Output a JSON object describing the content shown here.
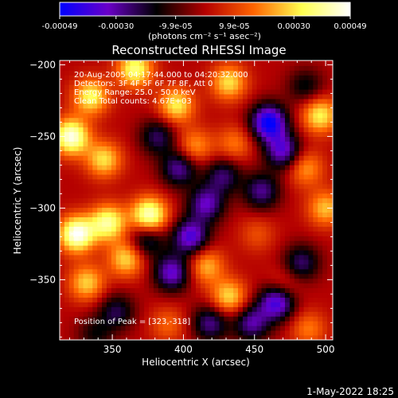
{
  "colorbar": {
    "tick_labels": [
      "-0.00049",
      "-0.00030",
      "-9.9e-05",
      "9.9e-05",
      "0.00030",
      "0.00049"
    ],
    "tick_values": [
      -0.00049,
      -0.0003,
      -9.9e-05,
      9.9e-05,
      0.0003,
      0.00049
    ],
    "range": [
      -0.00049,
      0.00049
    ],
    "units_label": "(photons cm⁻² s⁻¹ asec⁻²)",
    "gradient_colors": [
      "#0000ff",
      "#6a00c8",
      "#000000",
      "#b40000",
      "#ff6400",
      "#ffff50",
      "#ffffff"
    ]
  },
  "info": {
    "time_line": "20-Aug-2005 04:17:44.000 to 04:20:32.000",
    "detectors_line": "Detectors: 3F 4F 5F 6F 7F 8F, Att 0",
    "energy_line": "Energy Range: 25.0 - 50.0 keV",
    "clean_line": "Clean     Total counts: 4.67E+03",
    "peak_line": "Position of Peak = [323,-318]"
  },
  "footer": {
    "timestamp": "1-May-2022 18:25"
  },
  "chart_data": {
    "type": "heatmap",
    "title": "Reconstructed RHESSI Image",
    "xlabel": "Heliocentric X (arcsec)",
    "ylabel": "Heliocentric Y (arcsec)",
    "xlim": [
      313,
      505
    ],
    "ylim": [
      -392,
      -197
    ],
    "x_ticks": [
      350,
      400,
      450,
      500
    ],
    "y_ticks": [
      -200,
      -250,
      -300,
      -350
    ],
    "peak_position": [
      323,
      -318
    ],
    "colormap": "blue-purple-black-red-orange-yellow-white",
    "grid": false,
    "blobs": [
      {
        "x": 321,
        "y": -250,
        "value": 0.00047
      },
      {
        "x": 335,
        "y": -222,
        "value": 0.00034
      },
      {
        "x": 366,
        "y": -203,
        "value": 0.00037
      },
      {
        "x": 395,
        "y": -228,
        "value": 0.00032
      },
      {
        "x": 344,
        "y": -266,
        "value": 0.0003
      },
      {
        "x": 325,
        "y": -318,
        "value": 0.00049
      },
      {
        "x": 347,
        "y": -310,
        "value": 0.00039
      },
      {
        "x": 376,
        "y": -305,
        "value": 0.00046
      },
      {
        "x": 360,
        "y": -335,
        "value": 0.0003
      },
      {
        "x": 332,
        "y": -352,
        "value": 0.00028
      },
      {
        "x": 408,
        "y": -257,
        "value": 0.00022
      },
      {
        "x": 432,
        "y": -212,
        "value": 0.0003
      },
      {
        "x": 436,
        "y": -255,
        "value": 0.00018
      },
      {
        "x": 496,
        "y": -235,
        "value": 0.00033
      },
      {
        "x": 486,
        "y": -272,
        "value": 0.00022
      },
      {
        "x": 500,
        "y": -300,
        "value": 0.00026
      },
      {
        "x": 416,
        "y": -340,
        "value": 0.00025
      },
      {
        "x": 432,
        "y": -362,
        "value": 0.0003
      },
      {
        "x": 470,
        "y": -355,
        "value": 0.00016
      },
      {
        "x": 488,
        "y": -384,
        "value": 0.00018
      },
      {
        "x": 389,
        "y": -381,
        "value": 0.00015
      },
      {
        "x": 452,
        "y": -318,
        "value": 0.00012
      },
      {
        "x": 460,
        "y": -240,
        "value": -0.00049
      },
      {
        "x": 455,
        "y": -288,
        "value": -0.00028
      },
      {
        "x": 470,
        "y": -260,
        "value": -0.00035
      },
      {
        "x": 397,
        "y": -272,
        "value": -0.0003
      },
      {
        "x": 382,
        "y": -250,
        "value": -0.00024
      },
      {
        "x": 416,
        "y": -297,
        "value": -0.00032
      },
      {
        "x": 428,
        "y": -277,
        "value": -0.00025
      },
      {
        "x": 405,
        "y": -320,
        "value": -0.00038
      },
      {
        "x": 392,
        "y": -345,
        "value": -0.00035
      },
      {
        "x": 374,
        "y": -322,
        "value": -0.00026
      },
      {
        "x": 466,
        "y": -365,
        "value": -0.00044
      },
      {
        "x": 448,
        "y": -380,
        "value": -0.0003
      },
      {
        "x": 483,
        "y": -338,
        "value": -0.00025
      },
      {
        "x": 353,
        "y": -372,
        "value": -0.00022
      },
      {
        "x": 419,
        "y": -380,
        "value": -0.00028
      },
      {
        "x": 338,
        "y": -388,
        "value": -0.00015
      },
      {
        "x": 486,
        "y": -215,
        "value": -0.00018
      }
    ]
  }
}
